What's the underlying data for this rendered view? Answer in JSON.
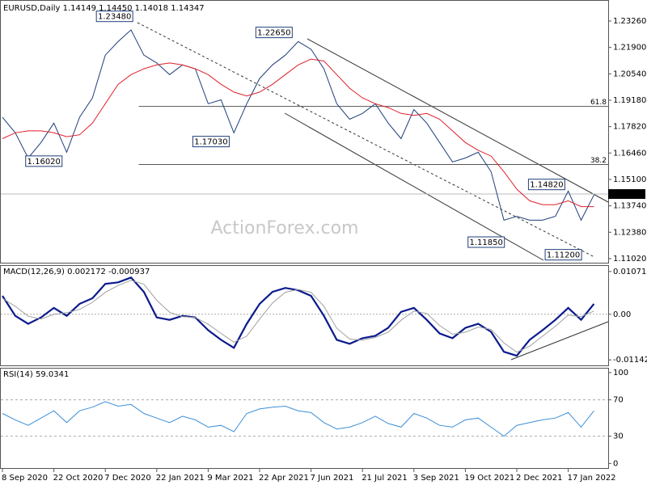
{
  "chart_data": [
    {
      "type": "line",
      "title": "EURUSD,Daily  1.14149 1.14450 1.14018 1.14347",
      "watermark": "ActionForex.com",
      "categories": [
        "8 Sep 2020",
        null,
        null,
        null,
        "22 Oct 2020",
        null,
        null,
        null,
        "7 Dec 2020",
        null,
        null,
        null,
        "22 Jan 2021",
        null,
        null,
        null,
        "9 Mar 2021",
        null,
        null,
        null,
        "22 Apr 2021",
        null,
        null,
        null,
        "7 Jun 2021",
        null,
        null,
        null,
        "21 Jul 2021",
        null,
        null,
        null,
        "3 Sep 2021",
        null,
        null,
        null,
        "19 Oct 2021",
        null,
        null,
        null,
        "2 Dec 2021",
        null,
        null,
        null,
        "17 Jan 2022",
        null,
        null
      ],
      "series": [
        {
          "color": "#1f3f7a",
          "values": [
            1.183,
            1.175,
            1.162,
            1.17,
            1.18,
            1.165,
            1.183,
            1.193,
            1.215,
            1.222,
            1.228,
            1.215,
            1.211,
            1.205,
            1.21,
            1.208,
            1.19,
            1.192,
            1.175,
            1.19,
            1.203,
            1.21,
            1.215,
            1.222,
            1.218,
            1.208,
            1.19,
            1.182,
            1.185,
            1.19,
            1.18,
            1.172,
            1.187,
            1.18,
            1.17,
            1.16,
            1.162,
            1.165,
            1.155,
            1.13,
            1.132,
            1.13,
            1.13,
            1.132,
            1.145,
            1.13,
            1.143
          ]
        },
        {
          "color": "#e0202a",
          "values": [
            1.172,
            1.175,
            1.176,
            1.176,
            1.175,
            1.173,
            1.174,
            1.18,
            1.19,
            1.2,
            1.205,
            1.208,
            1.21,
            1.211,
            1.21,
            1.208,
            1.205,
            1.2,
            1.196,
            1.194,
            1.196,
            1.2,
            1.205,
            1.21,
            1.213,
            1.212,
            1.205,
            1.198,
            1.193,
            1.19,
            1.188,
            1.185,
            1.184,
            1.185,
            1.182,
            1.176,
            1.17,
            1.166,
            1.163,
            1.155,
            1.146,
            1.14,
            1.138,
            1.138,
            1.14,
            1.137,
            1.137
          ]
        }
      ],
      "ylim": [
        1.1081,
        1.243
      ],
      "yticks": [
        {
          "value": 1.2326,
          "label": "1.23260"
        },
        {
          "value": 1.219,
          "label": "1.21900"
        },
        {
          "value": 1.2054,
          "label": "1.20540"
        },
        {
          "value": 1.1918,
          "label": "1.19180"
        },
        {
          "value": 1.1782,
          "label": "1.17820"
        },
        {
          "value": 1.1646,
          "label": "1.16460"
        },
        {
          "value": 1.151,
          "label": "1.15100"
        },
        {
          "value": 1.1374,
          "label": "1.13740"
        },
        {
          "value": 1.1238,
          "label": "1.12380"
        },
        {
          "value": 1.1102,
          "label": "1.11020"
        }
      ],
      "last_price": 1.14347,
      "annotations": [
        {
          "x": 10.2,
          "value": 1.2348,
          "label": "1.23480"
        },
        {
          "x": 22.6,
          "value": 1.2265,
          "label": "1.22650"
        },
        {
          "x": 17.7,
          "value": 1.1703,
          "label": "1.17030"
        },
        {
          "x": 4.7,
          "value": 1.1602,
          "label": "1.16020"
        },
        {
          "x": 39.1,
          "value": 1.1185,
          "label": "1.11850"
        },
        {
          "x": 45.1,
          "value": 1.112,
          "label": "1.11200"
        },
        {
          "x": 43.8,
          "value": 1.1482,
          "label": "1.14820"
        }
      ],
      "fib_levels": [
        {
          "x": 10.6,
          "value": 1.1886,
          "label": "61.8"
        },
        {
          "x": 10.6,
          "value": 1.1587,
          "label": "38.2"
        }
      ]
    },
    {
      "type": "line",
      "title": "MACD(12,26,9) 0.002172 -0.000937",
      "series": [
        {
          "color": "#0a1a8c",
          "values": [
            0.0046,
            -0.0004,
            -0.0024,
            -0.0008,
            0.0016,
            -0.0004,
            0.0026,
            0.004,
            0.0076,
            0.008,
            0.0092,
            0.0056,
            -0.0008,
            -0.0014,
            -0.0004,
            -0.0008,
            -0.004,
            -0.0064,
            -0.0084,
            -0.0024,
            0.0026,
            0.0056,
            0.0066,
            0.006,
            0.0046,
            -0.0004,
            -0.0064,
            -0.0074,
            -0.006,
            -0.0054,
            -0.0034,
            0.0006,
            0.0016,
            -0.0014,
            -0.0048,
            -0.006,
            -0.0034,
            -0.0024,
            -0.0044,
            -0.0094,
            -0.0104,
            -0.0064,
            -0.004,
            -0.0014,
            0.0016,
            -0.0014,
            0.0026
          ]
        },
        {
          "color": "#a0a0a0",
          "values": [
            0.004,
            0.002,
            -0.0005,
            -0.0012,
            0.0,
            0.0004,
            0.0012,
            0.003,
            0.0055,
            0.0072,
            0.0085,
            0.0075,
            0.0035,
            0.0005,
            -0.0006,
            -0.0008,
            -0.0025,
            -0.0048,
            -0.007,
            -0.0055,
            -0.0012,
            0.0028,
            0.0055,
            0.0062,
            0.0055,
            0.002,
            -0.0035,
            -0.0062,
            -0.0065,
            -0.0058,
            -0.0045,
            -0.0015,
            0.0008,
            0.0002,
            -0.0028,
            -0.005,
            -0.0045,
            -0.0032,
            -0.0038,
            -0.0072,
            -0.0095,
            -0.008,
            -0.0055,
            -0.003,
            -0.0002,
            -0.0006,
            0.0008
          ]
        }
      ],
      "ylim": [
        -0.0128,
        0.0121
      ],
      "yticks": [
        0.010715,
        {
          "value": 0,
          "label": "0.00"
        },
        -0.011424
      ]
    },
    {
      "type": "line",
      "title": "RSI(14) 59.0341",
      "series": [
        {
          "color": "#3b8fd8",
          "values": [
            55,
            48,
            42,
            50,
            58,
            45,
            58,
            62,
            68,
            63,
            65,
            55,
            50,
            45,
            52,
            48,
            40,
            42,
            35,
            55,
            60,
            62,
            63,
            58,
            56,
            45,
            38,
            40,
            45,
            52,
            44,
            40,
            55,
            50,
            42,
            40,
            48,
            50,
            40,
            30,
            42,
            45,
            48,
            50,
            56,
            40,
            58
          ]
        }
      ],
      "ylim": [
        -5,
        104.4
      ],
      "yticks": [
        100,
        70,
        30,
        0
      ]
    }
  ]
}
